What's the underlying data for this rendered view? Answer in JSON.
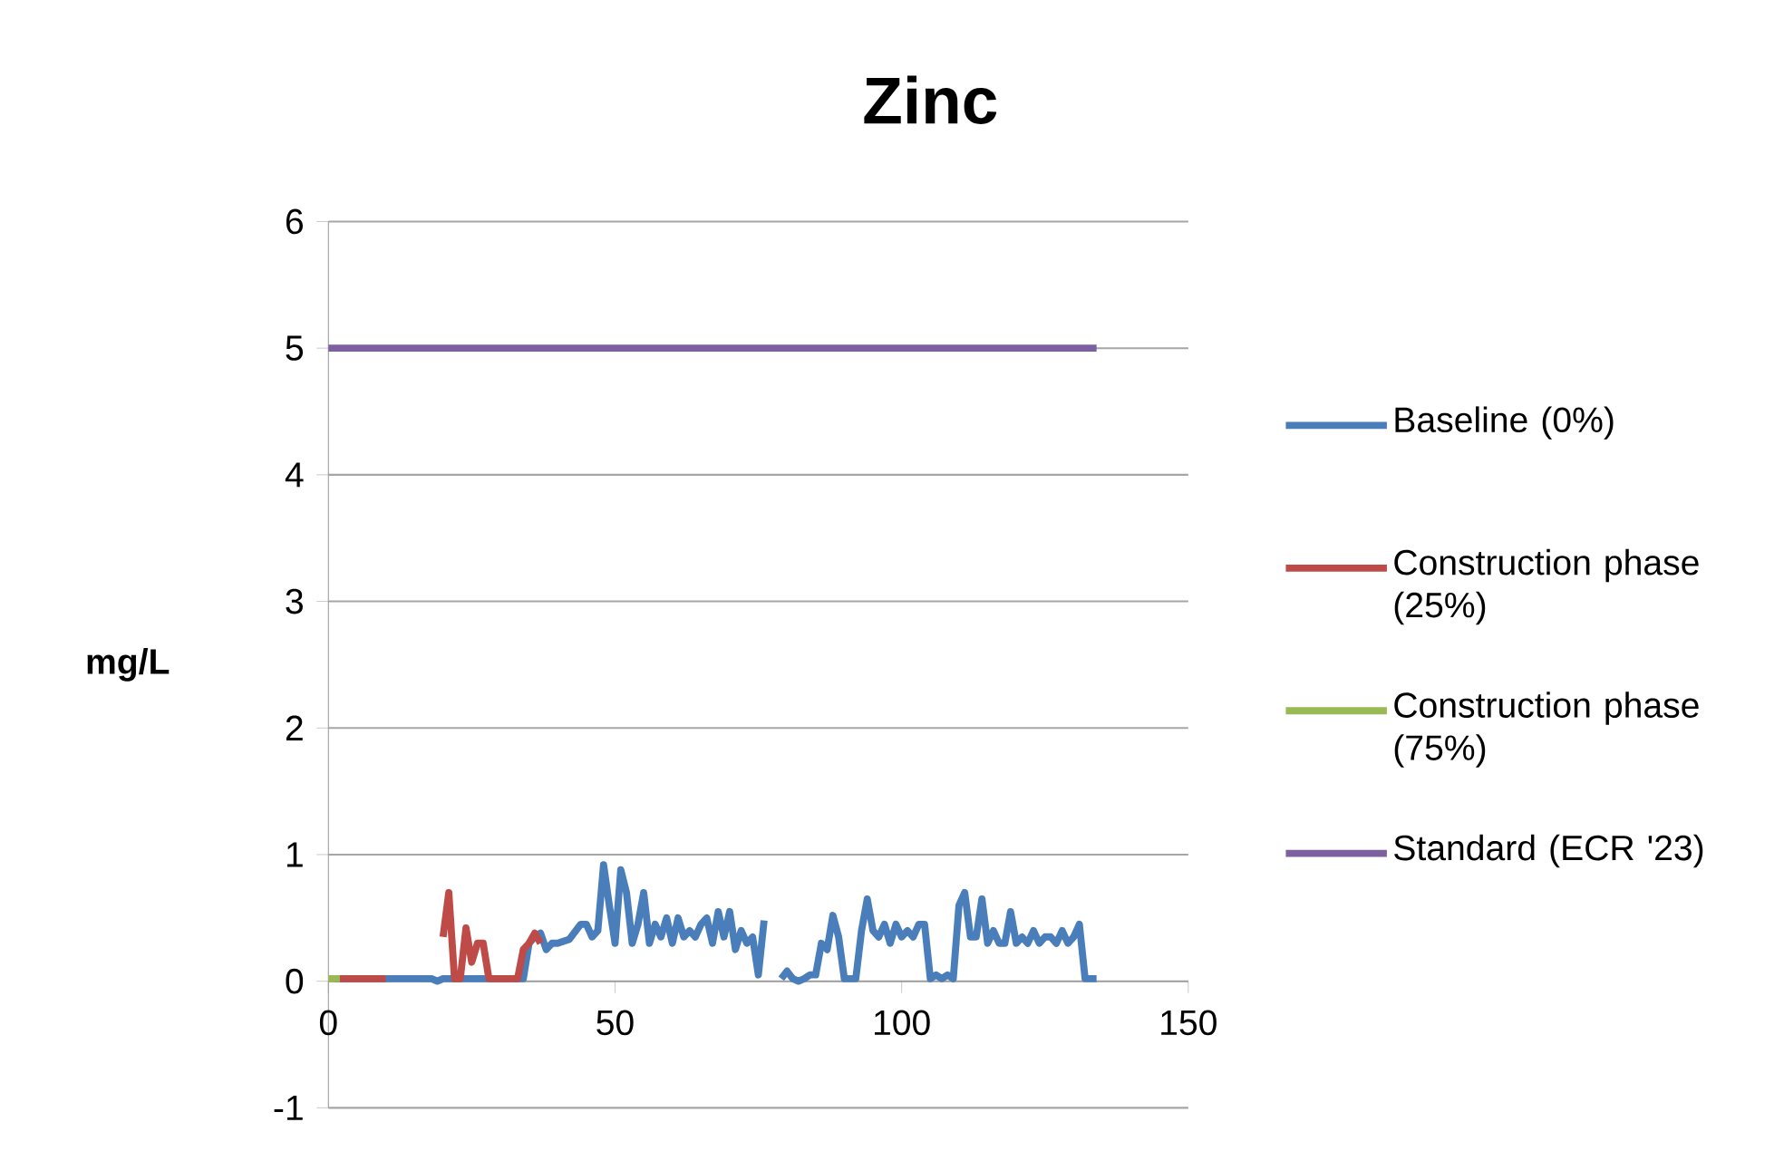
{
  "chart_data": {
    "type": "line",
    "title": "Zinc",
    "ylabel": "mg/L",
    "xlim": [
      0,
      150
    ],
    "xticks": [
      0,
      50,
      100,
      150
    ],
    "ylim": [
      -1,
      6
    ],
    "yticks": [
      -1,
      0,
      1,
      2,
      3,
      4,
      5,
      6
    ],
    "grid": "y",
    "legend": "right",
    "series": [
      {
        "name": "Baseline (0%)",
        "color": "#4a7ebb",
        "x": [
          1,
          10,
          18,
          19,
          20,
          34,
          35,
          36,
          37,
          38,
          39,
          40,
          42,
          44,
          45,
          46,
          47,
          48,
          49,
          50,
          51,
          52,
          53,
          54,
          55,
          56,
          57,
          58,
          59,
          60,
          61,
          62,
          63,
          64,
          65,
          66,
          67,
          68,
          69,
          70,
          71,
          72,
          73,
          74,
          75,
          76,
          77,
          79,
          80,
          81,
          82,
          83,
          84,
          85,
          86,
          87,
          88,
          89,
          90,
          92,
          93,
          94,
          95,
          96,
          97,
          98,
          99,
          100,
          101,
          102,
          103,
          104,
          105,
          106,
          107,
          108,
          109,
          110,
          111,
          112,
          113,
          114,
          115,
          116,
          117,
          118,
          119,
          120,
          121,
          122,
          123,
          124,
          125,
          126,
          127,
          128,
          129,
          130,
          131,
          132,
          134
        ],
        "values": [
          0.02,
          0.02,
          0.02,
          0,
          0.02,
          0.02,
          0.3,
          0.35,
          0.38,
          0.25,
          0.3,
          0.3,
          0.33,
          0.45,
          0.45,
          0.35,
          0.4,
          0.92,
          0.6,
          0.3,
          0.88,
          0.7,
          0.3,
          0.45,
          0.7,
          0.3,
          0.45,
          0.35,
          0.5,
          0.3,
          0.5,
          0.35,
          0.4,
          0.35,
          0.45,
          0.5,
          0.3,
          0.55,
          0.35,
          0.55,
          0.25,
          0.4,
          0.3,
          0.35,
          0.05,
          0.48,
          null,
          0.02,
          0.08,
          0.02,
          0,
          0.02,
          0.05,
          0.05,
          0.3,
          0.25,
          0.52,
          0.35,
          0.02,
          0.02,
          0.4,
          0.65,
          0.4,
          0.35,
          0.45,
          0.3,
          0.45,
          0.35,
          0.4,
          0.35,
          0.45,
          0.45,
          0.02,
          0.05,
          0.02,
          0.05,
          0.02,
          0.6,
          0.7,
          0.35,
          0.35,
          0.65,
          0.3,
          0.4,
          0.3,
          0.3,
          0.55,
          0.3,
          0.35,
          0.3,
          0.4,
          0.3,
          0.35,
          0.35,
          0.3,
          0.4,
          0.3,
          0.35,
          0.45,
          0.02,
          0.02
        ]
      },
      {
        "name": "Construction phase (25%)",
        "color": "#be4b48",
        "x": [
          1,
          10,
          15,
          20,
          21,
          22,
          23,
          24,
          25,
          26,
          27,
          28,
          33,
          34,
          35,
          36,
          37
        ],
        "values": [
          0.02,
          0.02,
          null,
          0.35,
          0.7,
          0.02,
          0.02,
          0.42,
          0.15,
          0.3,
          0.3,
          0.02,
          0.02,
          0.25,
          0.3,
          0.38,
          0.3
        ]
      },
      {
        "name": "Construction phase (75%)",
        "color": "#98b954",
        "x": [
          0,
          2
        ],
        "values": [
          0.02,
          0.02
        ]
      },
      {
        "name": "Standard (ECR '23)",
        "color": "#7d60a0",
        "x": [
          0,
          134
        ],
        "values": [
          5,
          5
        ]
      }
    ]
  }
}
